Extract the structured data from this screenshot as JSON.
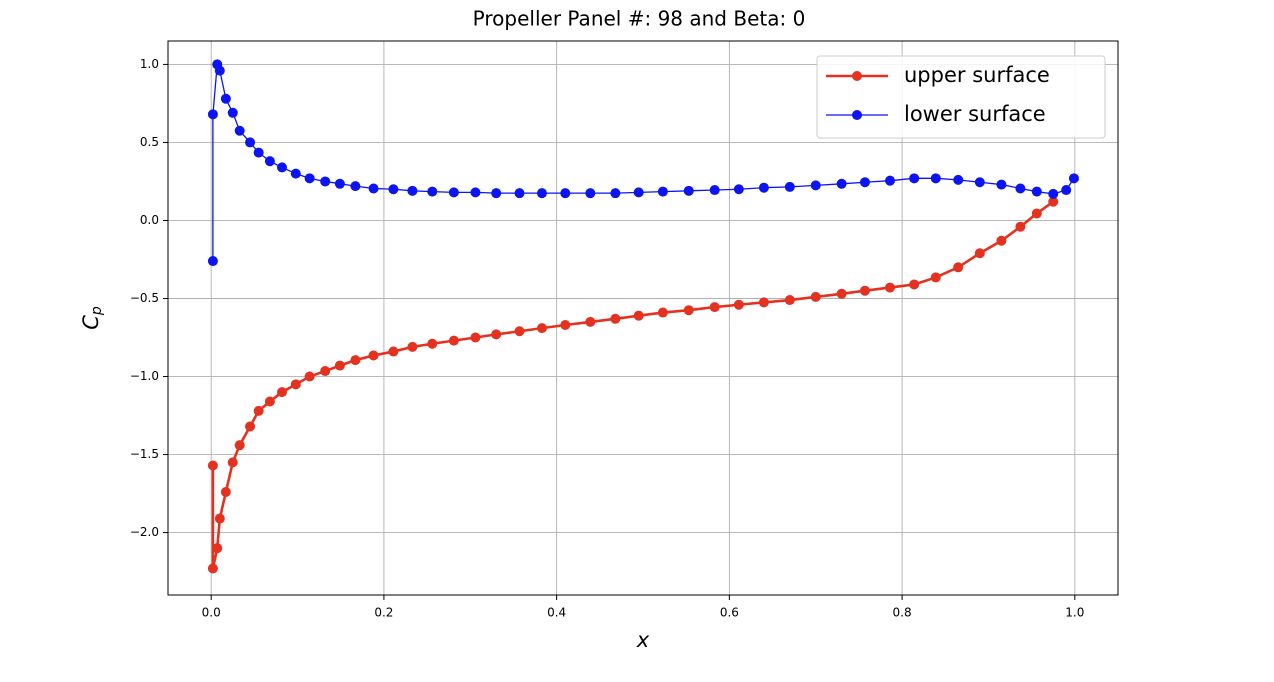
{
  "chart_data": {
    "type": "line",
    "title": "Propeller Panel #: 98 and Beta: 0",
    "xlabel": "x",
    "ylabel": "C",
    "ylabel_subscript": "p",
    "xlim": [
      -0.05,
      1.05
    ],
    "ylim": [
      -2.4,
      1.15
    ],
    "xticks": [
      {
        "value": 0,
        "label": "0.0"
      },
      0.2,
      0.4,
      0.6,
      0.8,
      {
        "value": 1,
        "label": "1.0"
      }
    ],
    "yticks": [
      {
        "value": -2,
        "label": "−2.0"
      },
      {
        "value": -1.5,
        "label": "−1.5"
      },
      {
        "value": -1,
        "label": "−1.0"
      },
      {
        "value": -0.5,
        "label": "−0.5"
      },
      {
        "value": 0,
        "label": "0.0"
      },
      0.5,
      {
        "value": 1,
        "label": "1.0"
      }
    ],
    "grid": true,
    "legend": "upper right",
    "series": [
      {
        "name": "upper surface",
        "color": "#e5311f",
        "line_width": 2.6,
        "x": [
          0.002,
          0.002,
          0.007,
          0.01,
          0.017,
          0.025,
          0.033,
          0.045,
          0.055,
          0.068,
          0.082,
          0.098,
          0.114,
          0.132,
          0.149,
          0.167,
          0.188,
          0.211,
          0.233,
          0.256,
          0.281,
          0.306,
          0.33,
          0.357,
          0.383,
          0.41,
          0.439,
          0.468,
          0.495,
          0.523,
          0.553,
          0.583,
          0.611,
          0.64,
          0.67,
          0.7,
          0.73,
          0.757,
          0.786,
          0.814,
          0.839,
          0.865,
          0.89,
          0.915,
          0.937,
          0.956,
          0.975
        ],
        "values": [
          -1.57,
          -2.23,
          -2.1,
          -1.91,
          -1.74,
          -1.55,
          -1.44,
          -1.32,
          -1.22,
          -1.16,
          -1.1,
          -1.05,
          -1.0,
          -0.965,
          -0.93,
          -0.895,
          -0.865,
          -0.84,
          -0.81,
          -0.79,
          -0.77,
          -0.75,
          -0.73,
          -0.71,
          -0.69,
          -0.67,
          -0.65,
          -0.63,
          -0.61,
          -0.59,
          -0.575,
          -0.555,
          -0.54,
          -0.525,
          -0.51,
          -0.49,
          -0.47,
          -0.45,
          -0.43,
          -0.41,
          -0.365,
          -0.3,
          -0.21,
          -0.13,
          -0.04,
          0.045,
          0.12
        ]
      },
      {
        "name": "lower surface",
        "color": "#0c14f2",
        "line_width": 1.3,
        "x": [
          0.002,
          0.002,
          0.007,
          0.01,
          0.017,
          0.025,
          0.033,
          0.045,
          0.055,
          0.068,
          0.082,
          0.098,
          0.114,
          0.132,
          0.149,
          0.167,
          0.188,
          0.211,
          0.233,
          0.256,
          0.281,
          0.306,
          0.33,
          0.357,
          0.383,
          0.41,
          0.439,
          0.468,
          0.495,
          0.523,
          0.553,
          0.583,
          0.611,
          0.64,
          0.67,
          0.7,
          0.73,
          0.757,
          0.786,
          0.814,
          0.839,
          0.865,
          0.89,
          0.915,
          0.937,
          0.956,
          0.975,
          0.99,
          0.999
        ],
        "values": [
          -0.26,
          0.68,
          1.0,
          0.96,
          0.78,
          0.69,
          0.575,
          0.5,
          0.435,
          0.38,
          0.34,
          0.3,
          0.27,
          0.25,
          0.235,
          0.22,
          0.205,
          0.2,
          0.19,
          0.185,
          0.18,
          0.18,
          0.175,
          0.175,
          0.175,
          0.175,
          0.175,
          0.175,
          0.18,
          0.185,
          0.19,
          0.195,
          0.2,
          0.21,
          0.215,
          0.225,
          0.235,
          0.245,
          0.255,
          0.27,
          0.27,
          0.26,
          0.245,
          0.23,
          0.205,
          0.185,
          0.17,
          0.195,
          0.27
        ]
      }
    ]
  }
}
